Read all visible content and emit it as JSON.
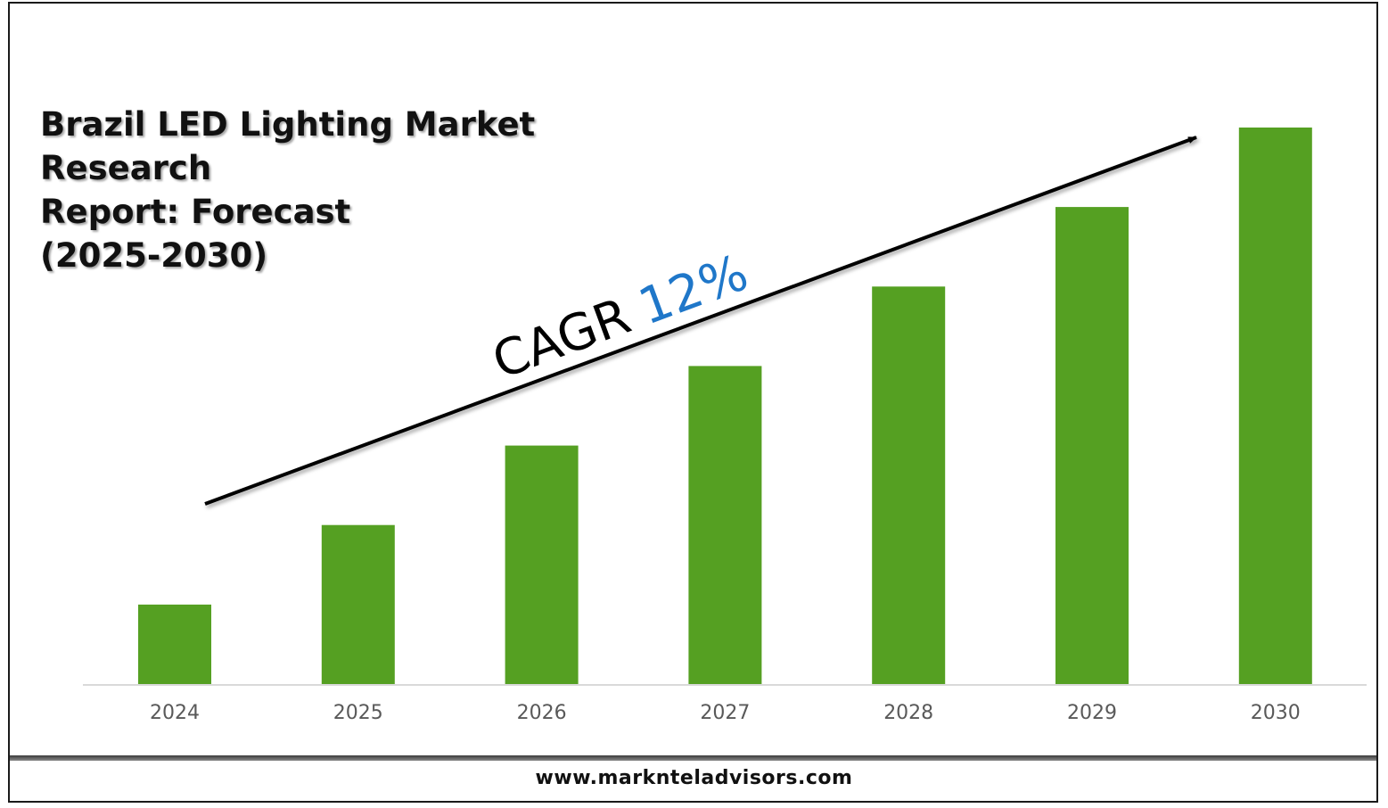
{
  "title_lines": [
    "Brazil LED Lighting Market Research",
    "Report: Forecast",
    "(2025-2030)"
  ],
  "cagr": {
    "label": "CAGR",
    "value": "12%"
  },
  "footer": {
    "website": "www.marknteladvisors.com"
  },
  "colors": {
    "bar": "#55a022",
    "cagr_value": "#1f77c9",
    "axis": "#d9d9d9",
    "text": "#111111",
    "tick": "#595959"
  },
  "chart_data": {
    "type": "bar",
    "categories": [
      "2024",
      "2025",
      "2026",
      "2027",
      "2028",
      "2029",
      "2030"
    ],
    "values": [
      1.0,
      2.0,
      3.0,
      4.0,
      5.0,
      6.0,
      7.0
    ],
    "title": "Brazil LED Lighting Market Research Report: Forecast (2025-2030)",
    "xlabel": "",
    "ylabel": "",
    "ylim": [
      0,
      7.0
    ],
    "grid": false,
    "legend": "none",
    "annotation": "CAGR 12%"
  }
}
